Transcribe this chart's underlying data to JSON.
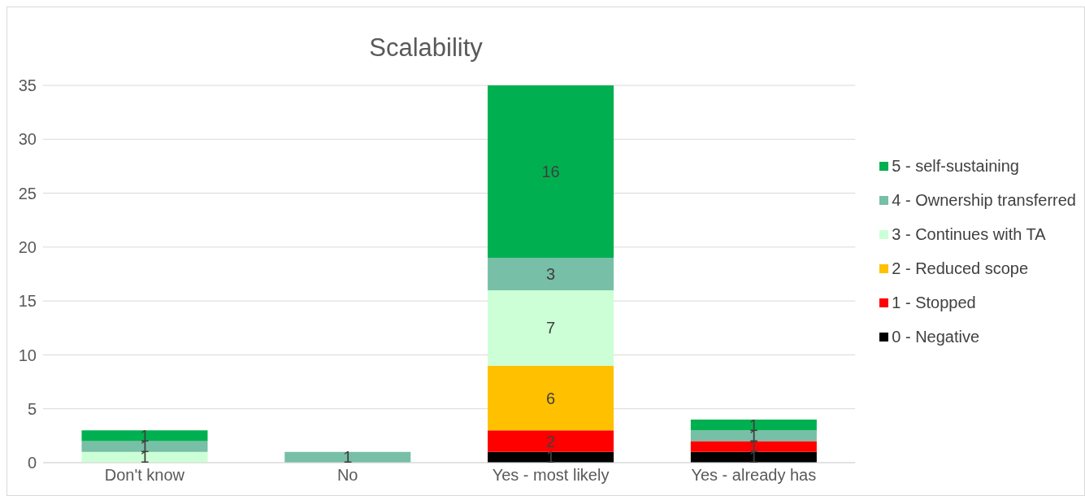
{
  "chart_data": {
    "type": "bar",
    "title": "Scalability",
    "stacked": true,
    "data_labels": true,
    "legend": "right",
    "grid": "y",
    "categories": [
      "Don't know",
      "No",
      "Yes - most likely",
      "Yes - already has"
    ],
    "ylim": [
      0,
      35
    ],
    "yticks": [
      0,
      5,
      10,
      15,
      20,
      25,
      30,
      35
    ],
    "series": [
      {
        "name": "0 - Negative",
        "color": "#000000",
        "values": [
          null,
          null,
          1,
          1
        ]
      },
      {
        "name": "1 - Stopped",
        "color": "#ff0000",
        "values": [
          null,
          null,
          2,
          1
        ]
      },
      {
        "name": "2 - Reduced scope",
        "color": "#ffc000",
        "values": [
          null,
          null,
          6,
          null
        ]
      },
      {
        "name": "3 - Continues with TA",
        "color": "#ccffd6",
        "values": [
          1,
          null,
          7,
          null
        ]
      },
      {
        "name": "4 - Ownership transferred",
        "color": "#77bfa6",
        "values": [
          1,
          1,
          3,
          1
        ]
      },
      {
        "name": "5 - self-sustaining",
        "color": "#00b050",
        "values": [
          1,
          null,
          16,
          1
        ]
      }
    ]
  }
}
